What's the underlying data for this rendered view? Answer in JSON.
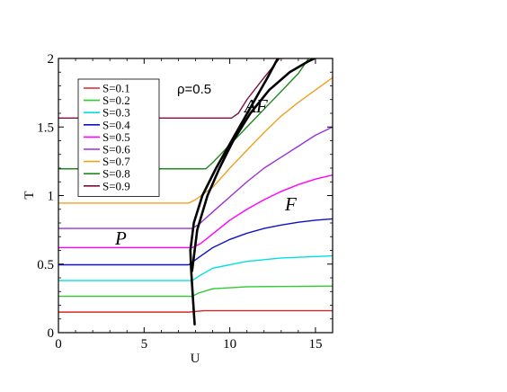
{
  "chart_data": {
    "type": "line",
    "title": "",
    "xlabel": "U",
    "ylabel": "T",
    "xlim": [
      0,
      16
    ],
    "ylim": [
      0,
      2
    ],
    "xticks": [
      0,
      5,
      10,
      15
    ],
    "yticks": [
      0,
      0.5,
      1,
      1.5,
      2
    ],
    "ytick_labels": [
      "0",
      "0.5",
      "1",
      "1.5",
      "2"
    ],
    "grid": false,
    "legend_position": "top-left",
    "annotations": {
      "rho": "ρ=0.5",
      "af": "AF",
      "f": "F",
      "p": "P"
    },
    "series": [
      {
        "name": "S=0.1",
        "color": "#d62728",
        "x": [
          0,
          7.6,
          8.5,
          16
        ],
        "y": [
          0.15,
          0.15,
          0.16,
          0.16
        ]
      },
      {
        "name": "S=0.2",
        "color": "#2ecc2e",
        "x": [
          0,
          7.8,
          8.2,
          9,
          11,
          16
        ],
        "y": [
          0.265,
          0.265,
          0.29,
          0.32,
          0.335,
          0.34
        ]
      },
      {
        "name": "S=0.3",
        "color": "#00e0e0",
        "x": [
          0,
          7.8,
          8.3,
          9,
          11,
          13,
          16
        ],
        "y": [
          0.38,
          0.38,
          0.42,
          0.47,
          0.52,
          0.545,
          0.56
        ]
      },
      {
        "name": "S=0.4",
        "color": "#1010c8",
        "x": [
          0,
          7.6,
          8.2,
          9,
          10,
          11,
          12,
          13,
          14,
          15,
          16
        ],
        "y": [
          0.495,
          0.495,
          0.55,
          0.62,
          0.68,
          0.725,
          0.76,
          0.785,
          0.805,
          0.82,
          0.83
        ]
      },
      {
        "name": "S=0.5",
        "color": "#ff00ff",
        "x": [
          0,
          7.8,
          8.3,
          9,
          10,
          11,
          12,
          13,
          14,
          15,
          16
        ],
        "y": [
          0.62,
          0.62,
          0.65,
          0.72,
          0.82,
          0.9,
          0.97,
          1.03,
          1.08,
          1.12,
          1.15
        ]
      },
      {
        "name": "S=0.6",
        "color": "#9b30d9",
        "x": [
          0,
          7.8,
          8.2,
          9,
          10,
          11,
          12,
          13,
          14,
          15,
          16
        ],
        "y": [
          0.76,
          0.76,
          0.79,
          0.88,
          0.99,
          1.1,
          1.2,
          1.28,
          1.36,
          1.44,
          1.5
        ]
      },
      {
        "name": "S=0.7",
        "color": "#f0a020",
        "x": [
          0,
          7.6,
          8,
          9,
          10,
          11,
          12,
          13,
          14,
          15,
          16
        ],
        "y": [
          0.945,
          0.945,
          0.97,
          1.06,
          1.2,
          1.33,
          1.46,
          1.58,
          1.68,
          1.77,
          1.86
        ]
      },
      {
        "name": "S=0.8",
        "color": "#208a20",
        "x": [
          0,
          8.6,
          9,
          10,
          11,
          12,
          13,
          14,
          14.6
        ],
        "y": [
          1.195,
          1.195,
          1.24,
          1.37,
          1.5,
          1.63,
          1.76,
          1.89,
          2.0
        ]
      },
      {
        "name": "S=0.9",
        "color": "#7a1040",
        "x": [
          0,
          10.1,
          10.5,
          11,
          12,
          12.9
        ],
        "y": [
          1.565,
          1.565,
          1.6,
          1.7,
          1.86,
          2.0
        ]
      }
    ],
    "boundaries": [
      {
        "color": "#000000",
        "x": [
          7.95,
          7.85,
          7.75,
          7.7,
          7.9,
          8.4,
          9.2,
          10.2,
          11.2,
          12.2,
          12.8
        ],
        "y": [
          0.06,
          0.25,
          0.45,
          0.6,
          0.8,
          1.0,
          1.2,
          1.42,
          1.64,
          1.86,
          2.0
        ]
      },
      {
        "color": "#000000",
        "x": [
          7.8,
          8.1,
          8.7,
          9.4,
          10.2,
          11.2,
          12.3,
          13.5,
          14.6,
          14.95
        ],
        "y": [
          0.45,
          0.75,
          1.0,
          1.2,
          1.4,
          1.6,
          1.77,
          1.9,
          1.98,
          2.0
        ]
      }
    ]
  }
}
